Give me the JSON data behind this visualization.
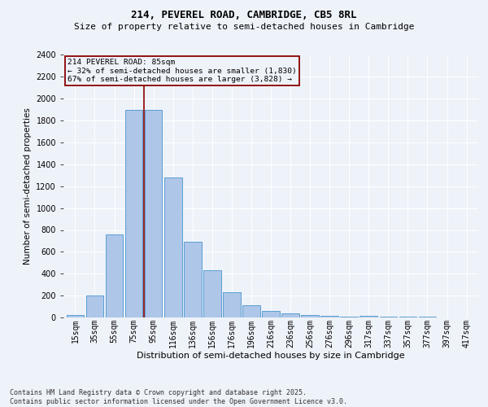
{
  "title1": "214, PEVEREL ROAD, CAMBRIDGE, CB5 8RL",
  "title2": "Size of property relative to semi-detached houses in Cambridge",
  "xlabel": "Distribution of semi-detached houses by size in Cambridge",
  "ylabel": "Number of semi-detached properties",
  "footnote1": "Contains HM Land Registry data © Crown copyright and database right 2025.",
  "footnote2": "Contains public sector information licensed under the Open Government Licence v3.0.",
  "categories": [
    "15sqm",
    "35sqm",
    "55sqm",
    "75sqm",
    "95sqm",
    "116sqm",
    "136sqm",
    "156sqm",
    "176sqm",
    "196sqm",
    "216sqm",
    "236sqm",
    "256sqm",
    "276sqm",
    "296sqm",
    "317sqm",
    "337sqm",
    "357sqm",
    "377sqm",
    "397sqm",
    "417sqm"
  ],
  "values": [
    20,
    200,
    760,
    1900,
    1900,
    1280,
    690,
    430,
    230,
    110,
    60,
    35,
    20,
    15,
    10,
    15,
    8,
    5,
    4,
    2,
    2
  ],
  "bar_color": "#aec6e8",
  "bar_edge_color": "#5a9fd4",
  "ylim": [
    0,
    2400
  ],
  "yticks": [
    0,
    200,
    400,
    600,
    800,
    1000,
    1200,
    1400,
    1600,
    1800,
    2000,
    2200,
    2400
  ],
  "annotation_title": "214 PEVEREL ROAD: 85sqm",
  "annotation_line1": "← 32% of semi-detached houses are smaller (1,830)",
  "annotation_line2": "67% of semi-detached houses are larger (3,828) →",
  "vline_color": "#8b0000",
  "vline_x": 3.5,
  "annotation_box_edge": "#8b0000",
  "bg_color": "#eef2f9",
  "grid_color": "#ffffff",
  "title1_fontsize": 9,
  "title2_fontsize": 8,
  "ylabel_fontsize": 7.5,
  "xlabel_fontsize": 8,
  "footnote_fontsize": 6,
  "tick_fontsize": 7
}
